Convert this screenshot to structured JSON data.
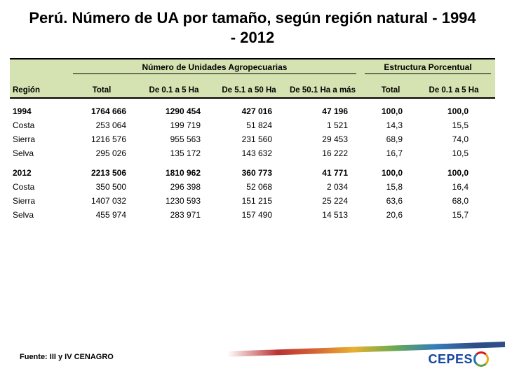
{
  "title": "Perú. Número de UA por tamaño, según región natural - 1994 - 2012",
  "source": "Fuente: III y IV CENAGRO",
  "logo_text": "CEPES",
  "header": {
    "region": "Región",
    "group1": "Número de Unidades Agropecuarias",
    "group2": "Estructura Porcentual",
    "total": "Total",
    "colA": "De 0.1 a 5 Ha",
    "colB": "De 5.1 a 50 Ha",
    "colC": "De 50.1 Ha a más",
    "pct_total": "Total",
    "pct_colA": "De 0.1 a 5 Ha"
  },
  "sections": [
    {
      "year": "1994",
      "year_row": {
        "total": "1764 666",
        "a": "1290 454",
        "b": "427 016",
        "c": "47 196",
        "pt": "100,0",
        "pa": "100,0"
      },
      "rows": [
        {
          "label": "Costa",
          "total": "253 064",
          "a": "199 719",
          "b": "51 824",
          "c": "1 521",
          "pt": "14,3",
          "pa": "15,5"
        },
        {
          "label": "Sierra",
          "total": "1216 576",
          "a": "955 563",
          "b": "231 560",
          "c": "29 453",
          "pt": "68,9",
          "pa": "74,0"
        },
        {
          "label": "Selva",
          "total": "295 026",
          "a": "135 172",
          "b": "143 632",
          "c": "16 222",
          "pt": "16,7",
          "pa": "10,5"
        }
      ]
    },
    {
      "year": "2012",
      "year_row": {
        "total": "2213 506",
        "a": "1810 962",
        "b": "360 773",
        "c": "41 771",
        "pt": "100,0",
        "pa": "100,0"
      },
      "rows": [
        {
          "label": "Costa",
          "total": "350 500",
          "a": "296 398",
          "b": "52 068",
          "c": "2 034",
          "pt": "15,8",
          "pa": "16,4"
        },
        {
          "label": "Sierra",
          "total": "1407 032",
          "a": "1230 593",
          "b": "151 215",
          "c": "25 224",
          "pt": "63,6",
          "pa": "68,0"
        },
        {
          "label": "Selva",
          "total": "455 974",
          "a": "283 971",
          "b": "157 490",
          "c": "14 513",
          "pt": "20,6",
          "pa": "15,7"
        }
      ]
    }
  ],
  "colors": {
    "header_band": "#d5e2b1",
    "title_text": "#000000",
    "logo_blue": "#17479e"
  }
}
